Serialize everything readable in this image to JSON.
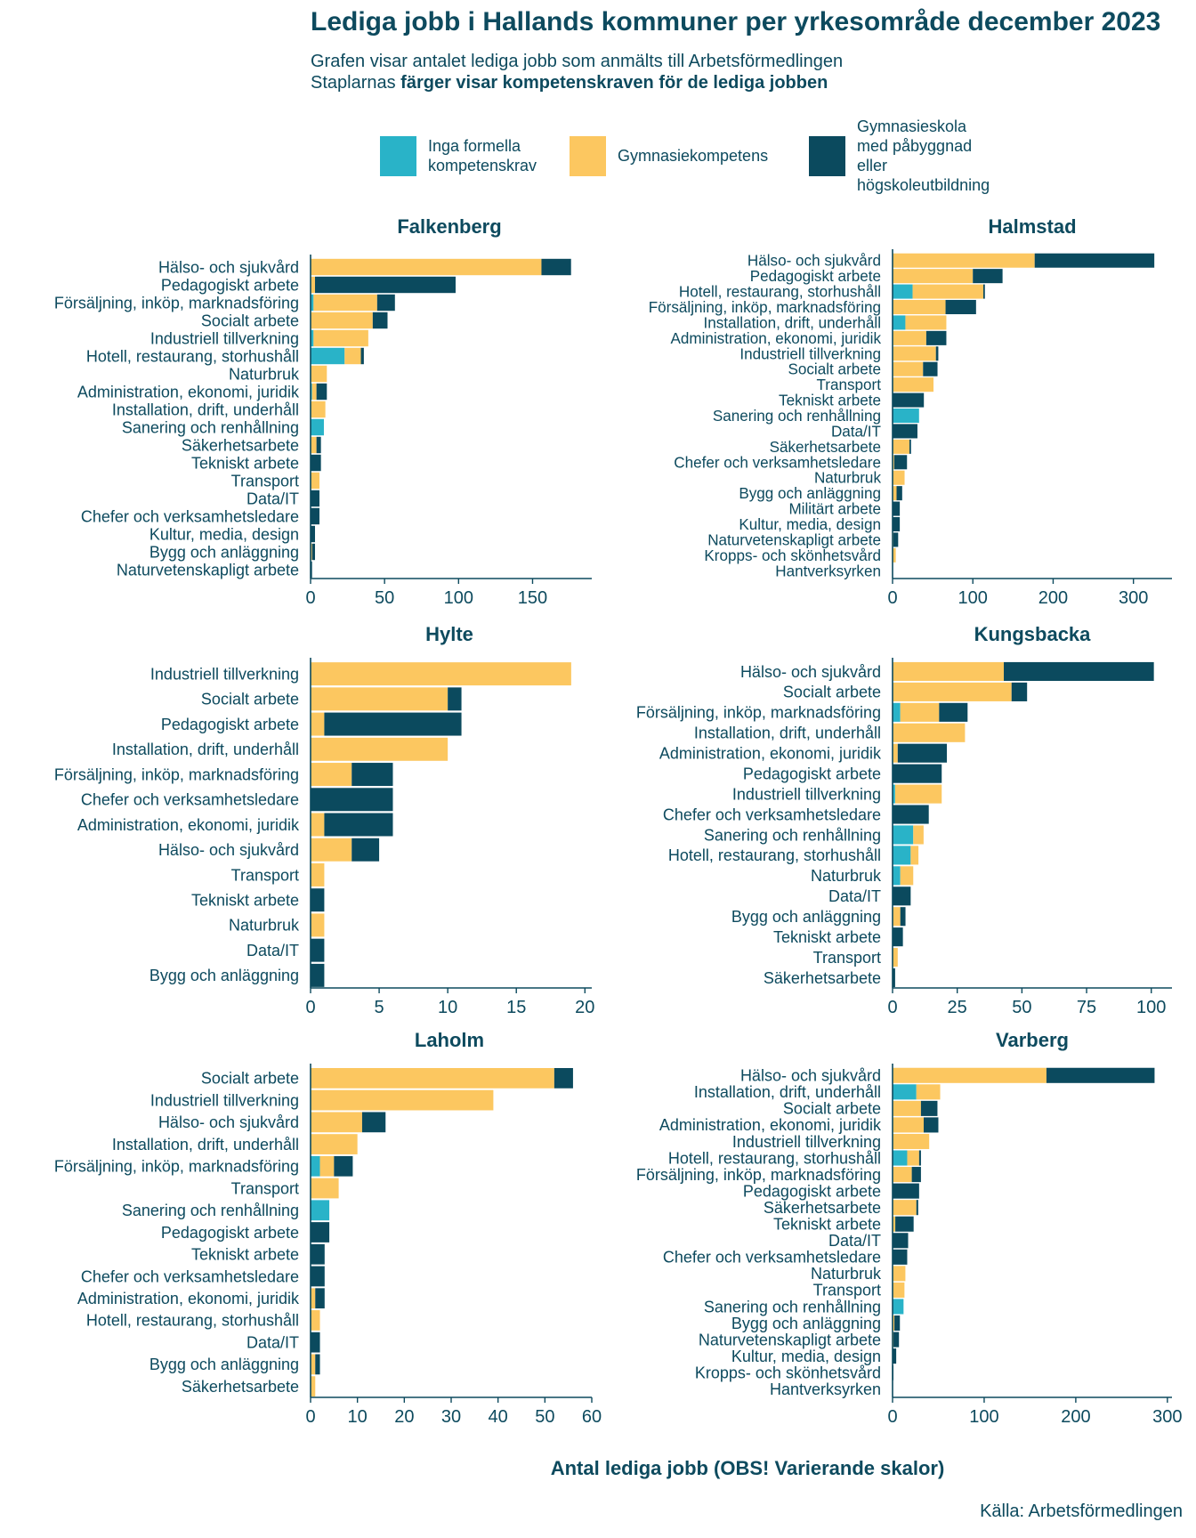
{
  "title": "Lediga jobb i Hallands kommuner per yrkesområde december 2023",
  "subtitle_line1": "Grafen visar antalet lediga jobb som anmälts till Arbetsförmedlingen",
  "subtitle_line2_prefix": "Staplarnas ",
  "subtitle_line2_bold": "färger visar kompetenskraven för de lediga jobben",
  "legend": [
    {
      "label": "Inga formella\nkompetenskrav",
      "color": "#29b3c8"
    },
    {
      "label": "Gymnasiekompetens",
      "color": "#fcc760"
    },
    {
      "label": "Gymnasieskola med påbyggnad\neller högskoleutbildning",
      "color": "#0b4a5e"
    }
  ],
  "x_axis_label": "Antal lediga jobb (OBS! Varierande skalor)",
  "source": "Källa: Arbetsförmedlingen",
  "chart_data": [
    {
      "type": "bar",
      "orientation": "horizontal",
      "stacked": true,
      "title": "Falkenberg",
      "xlim": [
        0,
        190
      ],
      "xticks": [
        0,
        50,
        100,
        150
      ],
      "series_order": [
        "Inga formella kompetenskrav",
        "Gymnasiekompetens",
        "Gymnasieskola med påbyggnad eller högskoleutbildning"
      ],
      "categories": [
        "Hälso- och sjukvård",
        "Pedagogiskt arbete",
        "Försäljning, inköp, marknadsföring",
        "Socialt arbete",
        "Industriell tillverkning",
        "Hotell, restaurang, storhushåll",
        "Naturbruk",
        "Administration, ekonomi, juridik",
        "Installation, drift, underhåll",
        "Sanering och renhållning",
        "Säkerhetsarbete",
        "Tekniskt arbete",
        "Transport",
        "Data/IT",
        "Chefer och verksamhetsledare",
        "Kultur, media, design",
        "Bygg och anläggning",
        "Naturvetenskapligt arbete"
      ],
      "values": [
        [
          0,
          156,
          20
        ],
        [
          0,
          3,
          95
        ],
        [
          2,
          43,
          12
        ],
        [
          0,
          42,
          10
        ],
        [
          2,
          37,
          0
        ],
        [
          23,
          11,
          2
        ],
        [
          0,
          11,
          0
        ],
        [
          1,
          3,
          7
        ],
        [
          0,
          10,
          0
        ],
        [
          9,
          0,
          0
        ],
        [
          0,
          4,
          3
        ],
        [
          0,
          0,
          7
        ],
        [
          0,
          6,
          0
        ],
        [
          0,
          0,
          6
        ],
        [
          0,
          0,
          6
        ],
        [
          0,
          0,
          3
        ],
        [
          0,
          1,
          2
        ],
        [
          0,
          0,
          1
        ]
      ]
    },
    {
      "type": "bar",
      "orientation": "horizontal",
      "stacked": true,
      "title": "Halmstad",
      "xlim": [
        0,
        348
      ],
      "xticks": [
        0,
        100,
        200,
        300
      ],
      "series_order": [
        "Inga formella kompetenskrav",
        "Gymnasiekompetens",
        "Gymnasieskola med påbyggnad eller högskoleutbildning"
      ],
      "categories": [
        "Hälso- och sjukvård",
        "Pedagogiskt arbete",
        "Hotell, restaurang, storhushåll",
        "Försäljning, inköp, marknadsföring",
        "Installation, drift, underhåll",
        "Administration, ekonomi, juridik",
        "Industriell tillverkning",
        "Socialt arbete",
        "Transport",
        "Tekniskt arbete",
        "Sanering och renhållning",
        "Data/IT",
        "Säkerhetsarbete",
        "Chefer och verksamhetsledare",
        "Naturbruk",
        "Bygg och anläggning",
        "Militärt arbete",
        "Kultur, media, design",
        "Naturvetenskapligt arbete",
        "Kropps- och skönhetsvård",
        "Hantverksyrken"
      ],
      "values": [
        [
          0,
          177,
          149
        ],
        [
          0,
          100,
          37
        ],
        [
          25,
          88,
          2
        ],
        [
          0,
          66,
          38
        ],
        [
          16,
          51,
          0
        ],
        [
          0,
          42,
          25
        ],
        [
          0,
          54,
          3
        ],
        [
          0,
          38,
          18
        ],
        [
          0,
          51,
          0
        ],
        [
          0,
          0,
          39
        ],
        [
          33,
          0,
          0
        ],
        [
          0,
          0,
          31
        ],
        [
          0,
          21,
          2
        ],
        [
          0,
          2,
          16
        ],
        [
          0,
          15,
          0
        ],
        [
          0,
          5,
          7
        ],
        [
          0,
          0,
          9
        ],
        [
          0,
          0,
          9
        ],
        [
          0,
          1,
          6
        ],
        [
          0,
          4,
          0
        ],
        [
          0,
          0,
          0
        ]
      ]
    },
    {
      "type": "bar",
      "orientation": "horizontal",
      "stacked": true,
      "title": "Hylte",
      "xlim": [
        0,
        20.5
      ],
      "xticks": [
        0,
        5,
        10,
        15,
        20
      ],
      "series_order": [
        "Inga formella kompetenskrav",
        "Gymnasiekompetens",
        "Gymnasieskola med påbyggnad eller högskoleutbildning"
      ],
      "categories": [
        "Industriell tillverkning",
        "Socialt arbete",
        "Pedagogiskt arbete",
        "Installation, drift, underhåll",
        "Försäljning, inköp, marknadsföring",
        "Chefer och verksamhetsledare",
        "Administration, ekonomi, juridik",
        "Hälso- och sjukvård",
        "Transport",
        "Tekniskt arbete",
        "Naturbruk",
        "Data/IT",
        "Bygg och anläggning"
      ],
      "values": [
        [
          0,
          19,
          0
        ],
        [
          0,
          10,
          1
        ],
        [
          0,
          1,
          10
        ],
        [
          0,
          10,
          0
        ],
        [
          0,
          3,
          3
        ],
        [
          0,
          0,
          6
        ],
        [
          0,
          1,
          5
        ],
        [
          0,
          3,
          2
        ],
        [
          0,
          1,
          0
        ],
        [
          0,
          0,
          1
        ],
        [
          0,
          1,
          0
        ],
        [
          0,
          0,
          1
        ],
        [
          0,
          0,
          1
        ]
      ]
    },
    {
      "type": "bar",
      "orientation": "horizontal",
      "stacked": true,
      "title": "Kungsbacka",
      "xlim": [
        0,
        108
      ],
      "xticks": [
        0,
        25,
        50,
        75,
        100
      ],
      "series_order": [
        "Inga formella kompetenskrav",
        "Gymnasiekompetens",
        "Gymnasieskola med påbyggnad eller högskoleutbildning"
      ],
      "categories": [
        "Hälso- och sjukvård",
        "Socialt arbete",
        "Försäljning, inköp, marknadsföring",
        "Installation, drift, underhåll",
        "Administration, ekonomi, juridik",
        "Pedagogiskt arbete",
        "Industriell tillverkning",
        "Chefer och verksamhetsledare",
        "Sanering och renhållning",
        "Hotell, restaurang, storhushåll",
        "Naturbruk",
        "Data/IT",
        "Bygg och anläggning",
        "Tekniskt arbete",
        "Transport",
        "Säkerhetsarbete"
      ],
      "values": [
        [
          0,
          43,
          58
        ],
        [
          0,
          46,
          6
        ],
        [
          3,
          15,
          11
        ],
        [
          0,
          28,
          0
        ],
        [
          0,
          2,
          19
        ],
        [
          0,
          0,
          19
        ],
        [
          1,
          18,
          0
        ],
        [
          0,
          0,
          14
        ],
        [
          8,
          4,
          0
        ],
        [
          7,
          3,
          0
        ],
        [
          3,
          5,
          0
        ],
        [
          0,
          0,
          7
        ],
        [
          0,
          3,
          2
        ],
        [
          0,
          0,
          4
        ],
        [
          0,
          2,
          0
        ],
        [
          0,
          0,
          1
        ]
      ]
    },
    {
      "type": "bar",
      "orientation": "horizontal",
      "stacked": true,
      "title": "Laholm",
      "xlim": [
        0,
        60
      ],
      "xticks": [
        0,
        10,
        20,
        30,
        40,
        50,
        60
      ],
      "series_order": [
        "Inga formella kompetenskrav",
        "Gymnasiekompetens",
        "Gymnasieskola med påbyggnad eller högskoleutbildning"
      ],
      "categories": [
        "Socialt arbete",
        "Industriell tillverkning",
        "Hälso- och sjukvård",
        "Installation, drift, underhåll",
        "Försäljning, inköp, marknadsföring",
        "Transport",
        "Sanering och renhållning",
        "Pedagogiskt arbete",
        "Tekniskt arbete",
        "Chefer och verksamhetsledare",
        "Administration, ekonomi, juridik",
        "Hotell, restaurang, storhushåll",
        "Data/IT",
        "Bygg och anläggning",
        "Säkerhetsarbete"
      ],
      "values": [
        [
          0,
          52,
          4
        ],
        [
          0,
          39,
          0
        ],
        [
          0,
          11,
          5
        ],
        [
          0,
          10,
          0
        ],
        [
          2,
          3,
          4
        ],
        [
          0,
          6,
          0
        ],
        [
          4,
          0,
          0
        ],
        [
          0,
          0,
          4
        ],
        [
          0,
          0,
          3
        ],
        [
          0,
          0,
          3
        ],
        [
          0,
          1,
          2
        ],
        [
          0,
          2,
          0
        ],
        [
          0,
          0,
          2
        ],
        [
          0,
          1,
          1
        ],
        [
          0,
          1,
          0
        ]
      ]
    },
    {
      "type": "bar",
      "orientation": "horizontal",
      "stacked": true,
      "title": "Varberg",
      "xlim": [
        0,
        305
      ],
      "xticks": [
        0,
        100,
        200,
        300
      ],
      "series_order": [
        "Inga formella kompetenskrav",
        "Gymnasiekompetens",
        "Gymnasieskola med påbyggnad eller högskoleutbildning"
      ],
      "categories": [
        "Hälso- och sjukvård",
        "Installation, drift, underhåll",
        "Socialt arbete",
        "Administration, ekonomi, juridik",
        "Industriell tillverkning",
        "Hotell, restaurang, storhushåll",
        "Försäljning, inköp, marknadsföring",
        "Pedagogiskt arbete",
        "Säkerhetsarbete",
        "Tekniskt arbete",
        "Data/IT",
        "Chefer och verksamhetsledare",
        "Naturbruk",
        "Transport",
        "Sanering och renhållning",
        "Bygg och anläggning",
        "Naturvetenskapligt arbete",
        "Kultur, media, design",
        "Kropps- och skönhetsvård",
        "Hantverksyrken"
      ],
      "values": [
        [
          0,
          168,
          118
        ],
        [
          26,
          26,
          0
        ],
        [
          0,
          31,
          18
        ],
        [
          0,
          34,
          16
        ],
        [
          0,
          40,
          0
        ],
        [
          16,
          13,
          2
        ],
        [
          0,
          21,
          10
        ],
        [
          0,
          0,
          29
        ],
        [
          0,
          26,
          2
        ],
        [
          0,
          3,
          20
        ],
        [
          0,
          0,
          17
        ],
        [
          0,
          0,
          16
        ],
        [
          0,
          14,
          0
        ],
        [
          0,
          13,
          0
        ],
        [
          12,
          0,
          0
        ],
        [
          0,
          2,
          6
        ],
        [
          0,
          1,
          6
        ],
        [
          0,
          0,
          4
        ],
        [
          0,
          0,
          1
        ],
        [
          0,
          0,
          0
        ]
      ]
    }
  ]
}
